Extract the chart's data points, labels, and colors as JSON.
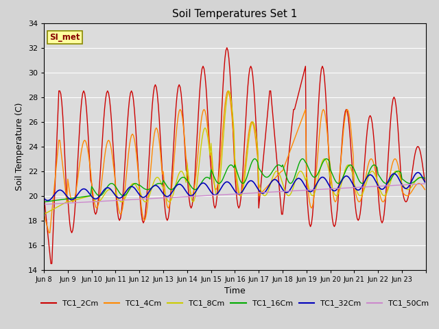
{
  "title": "Soil Temperatures Set 1",
  "xlabel": "Time",
  "ylabel": "Soil Temperature (C)",
  "ylim": [
    14,
    34
  ],
  "yticks": [
    14,
    16,
    18,
    20,
    22,
    24,
    26,
    28,
    30,
    32,
    34
  ],
  "fig_bg": "#d4d4d4",
  "plot_bg": "#dcdcdc",
  "grid_color": "#ffffff",
  "series_colors": {
    "TC1_2Cm": "#cc0000",
    "TC1_4Cm": "#ff8800",
    "TC1_8Cm": "#cccc00",
    "TC1_16Cm": "#00aa00",
    "TC1_32Cm": "#0000bb",
    "TC1_50Cm": "#cc88cc"
  },
  "xtick_labels": [
    "Jun 8",
    "Jun 9",
    "Jun 10",
    "Jun 11",
    "Jun 12",
    "Jun 13",
    "Jun 14",
    "Jun 15",
    "Jun 16",
    "Jun 17",
    "Jun 18",
    "Jun 19",
    "Jun 20",
    "Jun 21",
    "Jun 22",
    "Jun 23"
  ],
  "si_met_label": "SI_met",
  "si_met_bg": "#ffffa0",
  "si_met_border": "#888800",
  "si_met_text_color": "#880000",
  "n_days": 16,
  "n_per_day": 24
}
